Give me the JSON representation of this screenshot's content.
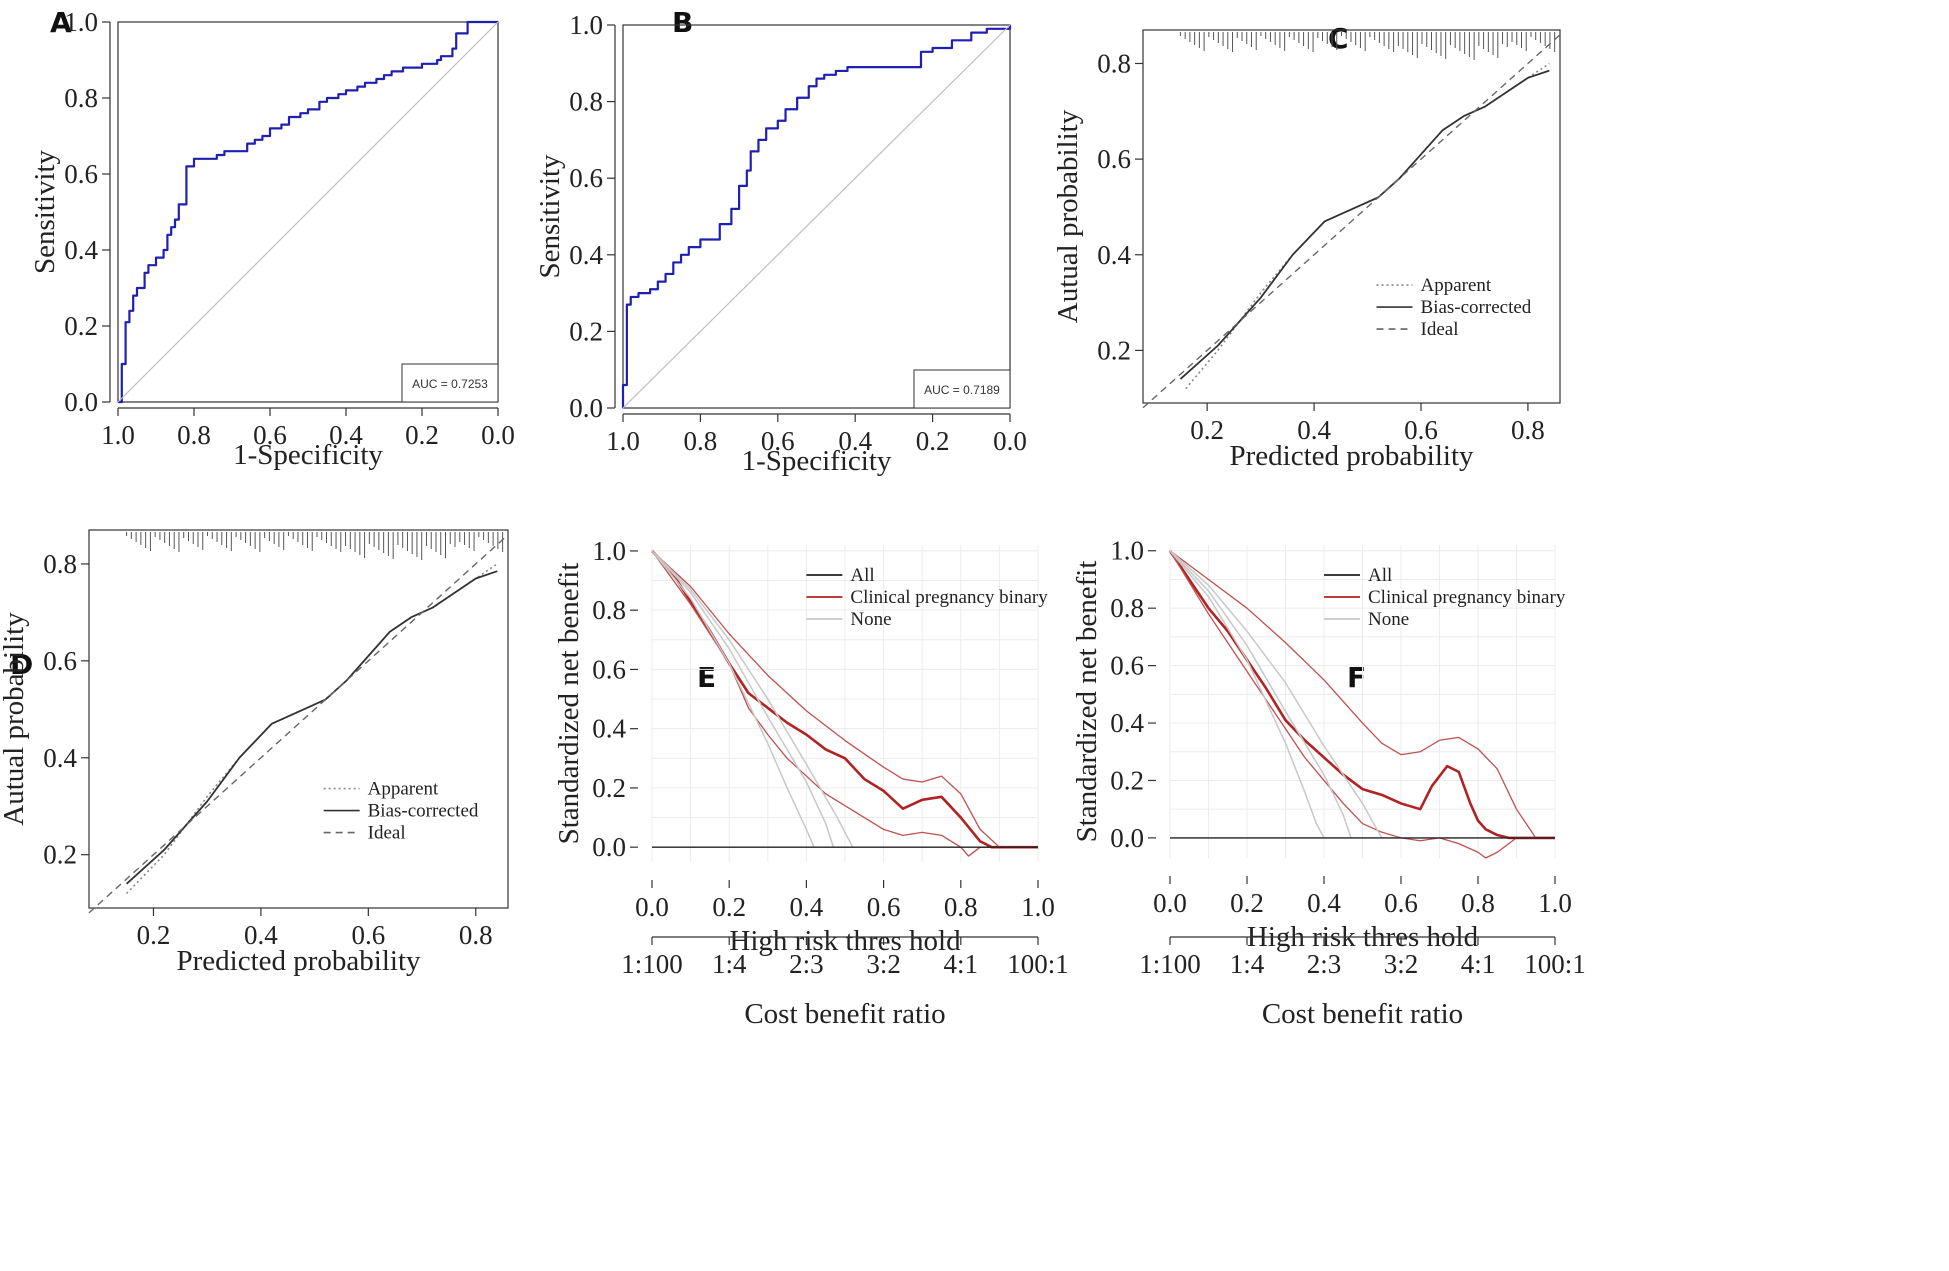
{
  "colors": {
    "roc": "#1f1fb4",
    "diag": "#bfbfbf",
    "frame": "#333333",
    "dca_main": "#b22222",
    "dca_ci": "#c05050",
    "none": "#c8c8c8",
    "grid": "#ececec"
  },
  "chart_data": [
    {
      "panel": "A",
      "type": "line",
      "xlabel": "1-Specificity",
      "ylabel": "Sensitivity",
      "xlim": [
        1.0,
        0.0
      ],
      "ylim": [
        0.0,
        1.0
      ],
      "xticks": [
        "1.0",
        "0.8",
        "0.6",
        "0.4",
        "0.2",
        "0.0"
      ],
      "yticks": [
        "0.0",
        "0.2",
        "0.4",
        "0.6",
        "0.8",
        "1.0"
      ],
      "auc_label": "AUC = 0.7253",
      "series": [
        {
          "x": [
            1.0,
            0.99,
            0.99,
            0.98,
            0.98,
            0.97,
            0.96,
            0.95,
            0.93,
            0.92,
            0.9,
            0.88,
            0.87,
            0.86,
            0.85,
            0.84,
            0.82,
            0.82,
            0.8,
            0.78,
            0.74,
            0.72,
            0.7,
            0.66,
            0.64,
            0.62,
            0.6,
            0.57,
            0.55,
            0.52,
            0.5,
            0.47,
            0.45,
            0.42,
            0.4,
            0.37,
            0.35,
            0.32,
            0.3,
            0.28,
            0.25,
            0.22,
            0.2,
            0.18,
            0.16,
            0.15,
            0.12,
            0.11,
            0.08,
            0.05,
            0.02,
            0.0
          ],
          "y": [
            0.0,
            0.02,
            0.1,
            0.18,
            0.21,
            0.24,
            0.28,
            0.3,
            0.34,
            0.36,
            0.38,
            0.4,
            0.44,
            0.46,
            0.48,
            0.52,
            0.56,
            0.62,
            0.64,
            0.64,
            0.65,
            0.66,
            0.66,
            0.68,
            0.69,
            0.7,
            0.72,
            0.73,
            0.75,
            0.76,
            0.77,
            0.79,
            0.8,
            0.81,
            0.82,
            0.83,
            0.84,
            0.85,
            0.86,
            0.87,
            0.88,
            0.88,
            0.89,
            0.89,
            0.9,
            0.91,
            0.93,
            0.97,
            1.0,
            1.0,
            1.0,
            1.0
          ]
        }
      ]
    },
    {
      "panel": "B",
      "type": "line",
      "xlabel": "1-Specificity",
      "ylabel": "Sensitivity",
      "xlim": [
        1.0,
        0.0
      ],
      "ylim": [
        0.0,
        1.0
      ],
      "xticks": [
        "1.0",
        "0.8",
        "0.6",
        "0.4",
        "0.2",
        "0.0"
      ],
      "yticks": [
        "0.0",
        "0.2",
        "0.4",
        "0.6",
        "0.8",
        "1.0"
      ],
      "auc_label": "AUC = 0.7189",
      "series": [
        {
          "x": [
            1.0,
            1.0,
            0.99,
            0.99,
            0.98,
            0.96,
            0.93,
            0.91,
            0.89,
            0.87,
            0.85,
            0.83,
            0.8,
            0.78,
            0.75,
            0.72,
            0.7,
            0.68,
            0.67,
            0.65,
            0.63,
            0.6,
            0.58,
            0.55,
            0.52,
            0.5,
            0.48,
            0.45,
            0.42,
            0.38,
            0.33,
            0.28,
            0.23,
            0.23,
            0.2,
            0.15,
            0.1,
            0.06,
            0.0
          ],
          "y": [
            0.0,
            0.06,
            0.07,
            0.27,
            0.29,
            0.3,
            0.31,
            0.33,
            0.35,
            0.38,
            0.4,
            0.42,
            0.44,
            0.44,
            0.48,
            0.52,
            0.58,
            0.62,
            0.67,
            0.7,
            0.73,
            0.75,
            0.78,
            0.81,
            0.84,
            0.86,
            0.87,
            0.88,
            0.89,
            0.89,
            0.89,
            0.89,
            0.89,
            0.93,
            0.94,
            0.96,
            0.98,
            0.99,
            1.0
          ]
        }
      ]
    },
    {
      "panel": "C",
      "type": "line",
      "xlabel": "Predicted probability",
      "ylabel": "Autual probability",
      "xlim": [
        0.08,
        0.86
      ],
      "ylim": [
        0.09,
        0.87
      ],
      "xticks": [
        "0.2",
        "0.4",
        "0.6",
        "0.8"
      ],
      "yticks": [
        "0.2",
        "0.4",
        "0.6",
        "0.8"
      ],
      "legend": [
        "Apparent",
        "Bias-corrected",
        "Ideal"
      ],
      "series": [
        {
          "name": "Apparent",
          "x": [
            0.16,
            0.22,
            0.3,
            0.36,
            0.42,
            0.48,
            0.52,
            0.56,
            0.6,
            0.64,
            0.68,
            0.72,
            0.76,
            0.8,
            0.84
          ],
          "y": [
            0.12,
            0.2,
            0.32,
            0.4,
            0.47,
            0.5,
            0.52,
            0.56,
            0.61,
            0.66,
            0.69,
            0.71,
            0.74,
            0.77,
            0.8
          ]
        },
        {
          "name": "Bias-corrected",
          "x": [
            0.15,
            0.22,
            0.3,
            0.36,
            0.42,
            0.48,
            0.52,
            0.56,
            0.6,
            0.64,
            0.68,
            0.72,
            0.76,
            0.8,
            0.84
          ],
          "y": [
            0.14,
            0.21,
            0.31,
            0.4,
            0.47,
            0.5,
            0.52,
            0.56,
            0.61,
            0.66,
            0.69,
            0.71,
            0.74,
            0.77,
            0.785
          ]
        },
        {
          "name": "Ideal",
          "x": [
            0.08,
            0.86
          ],
          "y": [
            0.08,
            0.86
          ]
        }
      ]
    },
    {
      "panel": "D",
      "type": "line",
      "xlabel": "Predicted probability",
      "ylabel": "Autual probability",
      "xlim": [
        0.08,
        0.86
      ],
      "ylim": [
        0.09,
        0.87
      ],
      "xticks": [
        "0.2",
        "0.4",
        "0.6",
        "0.8"
      ],
      "yticks": [
        "0.2",
        "0.4",
        "0.6",
        "0.8"
      ],
      "legend": [
        "Apparent",
        "Bias-corrected",
        "Ideal"
      ],
      "series": [
        {
          "name": "Apparent",
          "x": [
            0.15,
            0.22,
            0.3,
            0.36,
            0.42,
            0.48,
            0.52,
            0.56,
            0.6,
            0.64,
            0.68,
            0.72,
            0.76,
            0.8,
            0.84
          ],
          "y": [
            0.12,
            0.2,
            0.32,
            0.4,
            0.47,
            0.5,
            0.52,
            0.56,
            0.61,
            0.66,
            0.69,
            0.71,
            0.74,
            0.77,
            0.8
          ]
        },
        {
          "name": "Bias-corrected",
          "x": [
            0.15,
            0.22,
            0.3,
            0.36,
            0.42,
            0.48,
            0.52,
            0.56,
            0.6,
            0.64,
            0.68,
            0.72,
            0.76,
            0.8,
            0.84
          ],
          "y": [
            0.14,
            0.21,
            0.31,
            0.4,
            0.47,
            0.5,
            0.52,
            0.56,
            0.61,
            0.66,
            0.69,
            0.71,
            0.74,
            0.77,
            0.785
          ]
        },
        {
          "name": "Ideal",
          "x": [
            0.08,
            0.86
          ],
          "y": [
            0.08,
            0.86
          ]
        }
      ]
    },
    {
      "panel": "E",
      "type": "line",
      "xlabel": "High risk thres hold",
      "ylabel": "Standardized net benefit",
      "xlabel2": "Cost benefit ratio",
      "xlim": [
        0.0,
        1.0
      ],
      "ylim": [
        -0.05,
        1.02
      ],
      "xticks": [
        "0.0",
        "0.2",
        "0.4",
        "0.6",
        "0.8",
        "1.0"
      ],
      "yticks": [
        "0.0",
        "0.2",
        "0.4",
        "0.6",
        "0.8",
        "1.0"
      ],
      "cost_ticks": [
        "1:100",
        "1:4",
        "2:3",
        "3:2",
        "4:1",
        "100:1"
      ],
      "legend": [
        "All",
        "Clinical pregnancy binary",
        "None"
      ],
      "series": [
        {
          "name": "Clinical pregnancy binary",
          "x": [
            0.0,
            0.05,
            0.1,
            0.15,
            0.2,
            0.25,
            0.3,
            0.35,
            0.4,
            0.45,
            0.5,
            0.55,
            0.6,
            0.65,
            0.7,
            0.75,
            0.8,
            0.85,
            0.88,
            0.9,
            1.0
          ],
          "y": [
            1.0,
            0.93,
            0.83,
            0.73,
            0.62,
            0.52,
            0.47,
            0.42,
            0.38,
            0.33,
            0.3,
            0.23,
            0.19,
            0.13,
            0.16,
            0.17,
            0.1,
            0.02,
            0.0,
            0.0,
            0.0
          ]
        },
        {
          "name": "CI upper",
          "x": [
            0.0,
            0.1,
            0.2,
            0.3,
            0.4,
            0.5,
            0.6,
            0.65,
            0.7,
            0.75,
            0.8,
            0.85,
            0.9
          ],
          "y": [
            1.0,
            0.88,
            0.72,
            0.58,
            0.46,
            0.36,
            0.27,
            0.23,
            0.22,
            0.24,
            0.18,
            0.06,
            0.0
          ]
        },
        {
          "name": "CI lower",
          "x": [
            0.0,
            0.1,
            0.2,
            0.25,
            0.3,
            0.35,
            0.4,
            0.45,
            0.5,
            0.55,
            0.6,
            0.65,
            0.7,
            0.75,
            0.8,
            0.82,
            0.85,
            0.9
          ],
          "y": [
            1.0,
            0.82,
            0.62,
            0.47,
            0.38,
            0.3,
            0.24,
            0.18,
            0.14,
            0.1,
            0.06,
            0.04,
            0.05,
            0.04,
            0.0,
            -0.03,
            0.0,
            0.0
          ]
        },
        {
          "name": "All",
          "x": [
            0.0,
            0.1,
            0.2,
            0.3,
            0.35,
            0.4,
            0.42
          ],
          "y": [
            1.0,
            0.84,
            0.62,
            0.35,
            0.2,
            0.06,
            0.0
          ]
        },
        {
          "name": "All 2",
          "x": [
            0.0,
            0.1,
            0.2,
            0.3,
            0.4,
            0.45,
            0.47
          ],
          "y": [
            1.0,
            0.86,
            0.67,
            0.44,
            0.22,
            0.08,
            0.0
          ]
        },
        {
          "name": "All 3",
          "x": [
            0.0,
            0.1,
            0.2,
            0.3,
            0.4,
            0.48,
            0.52
          ],
          "y": [
            1.0,
            0.87,
            0.7,
            0.5,
            0.28,
            0.1,
            0.0
          ]
        },
        {
          "name": "None",
          "x": [
            0.0,
            1.0
          ],
          "y": [
            0.0,
            0.0
          ]
        }
      ]
    },
    {
      "panel": "F",
      "type": "line",
      "xlabel": "High risk thres hold",
      "ylabel": "Standardized net benefit",
      "xlabel2": "Cost benefit ratio",
      "xlim": [
        0.0,
        1.0
      ],
      "ylim": [
        -0.07,
        1.02
      ],
      "xticks": [
        "0.0",
        "0.2",
        "0.4",
        "0.6",
        "0.8",
        "1.0"
      ],
      "yticks": [
        "0.0",
        "0.2",
        "0.4",
        "0.6",
        "0.8",
        "1.0"
      ],
      "cost_ticks": [
        "1:100",
        "1:4",
        "2:3",
        "3:2",
        "4:1",
        "100:1"
      ],
      "legend": [
        "All",
        "Clinical pregnancy binary",
        "None"
      ],
      "series": [
        {
          "name": "Clinical pregnancy binary",
          "x": [
            0.0,
            0.05,
            0.1,
            0.15,
            0.2,
            0.25,
            0.3,
            0.35,
            0.4,
            0.45,
            0.5,
            0.55,
            0.6,
            0.65,
            0.68,
            0.72,
            0.75,
            0.78,
            0.8,
            0.82,
            0.85,
            0.88,
            1.0
          ],
          "y": [
            1.0,
            0.9,
            0.8,
            0.72,
            0.62,
            0.52,
            0.41,
            0.34,
            0.28,
            0.22,
            0.17,
            0.15,
            0.12,
            0.1,
            0.18,
            0.25,
            0.23,
            0.12,
            0.06,
            0.03,
            0.01,
            0.0,
            0.0
          ]
        },
        {
          "name": "CI upper",
          "x": [
            0.0,
            0.1,
            0.2,
            0.3,
            0.4,
            0.5,
            0.55,
            0.6,
            0.65,
            0.7,
            0.75,
            0.8,
            0.85,
            0.9,
            0.95
          ],
          "y": [
            1.0,
            0.9,
            0.8,
            0.68,
            0.55,
            0.4,
            0.33,
            0.29,
            0.3,
            0.34,
            0.35,
            0.31,
            0.24,
            0.1,
            0.0
          ]
        },
        {
          "name": "CI lower",
          "x": [
            0.0,
            0.1,
            0.2,
            0.25,
            0.3,
            0.35,
            0.4,
            0.45,
            0.5,
            0.55,
            0.6,
            0.65,
            0.7,
            0.75,
            0.8,
            0.82,
            0.85,
            0.9,
            0.95
          ],
          "y": [
            1.0,
            0.78,
            0.58,
            0.48,
            0.38,
            0.28,
            0.2,
            0.12,
            0.05,
            0.02,
            0.0,
            -0.01,
            0.0,
            -0.02,
            -0.05,
            -0.07,
            -0.05,
            0.0,
            0.0
          ]
        },
        {
          "name": "All",
          "x": [
            0.0,
            0.1,
            0.2,
            0.3,
            0.35,
            0.38,
            0.4
          ],
          "y": [
            1.0,
            0.84,
            0.62,
            0.33,
            0.16,
            0.05,
            0.0
          ]
        },
        {
          "name": "All 2",
          "x": [
            0.0,
            0.1,
            0.2,
            0.3,
            0.4,
            0.45,
            0.47
          ],
          "y": [
            1.0,
            0.86,
            0.67,
            0.44,
            0.22,
            0.08,
            0.0
          ]
        },
        {
          "name": "All 3",
          "x": [
            0.0,
            0.1,
            0.2,
            0.3,
            0.4,
            0.5,
            0.55
          ],
          "y": [
            1.0,
            0.88,
            0.72,
            0.54,
            0.32,
            0.12,
            0.0
          ]
        },
        {
          "name": "None",
          "x": [
            0.0,
            1.0
          ],
          "y": [
            0.0,
            0.0
          ]
        }
      ]
    }
  ]
}
